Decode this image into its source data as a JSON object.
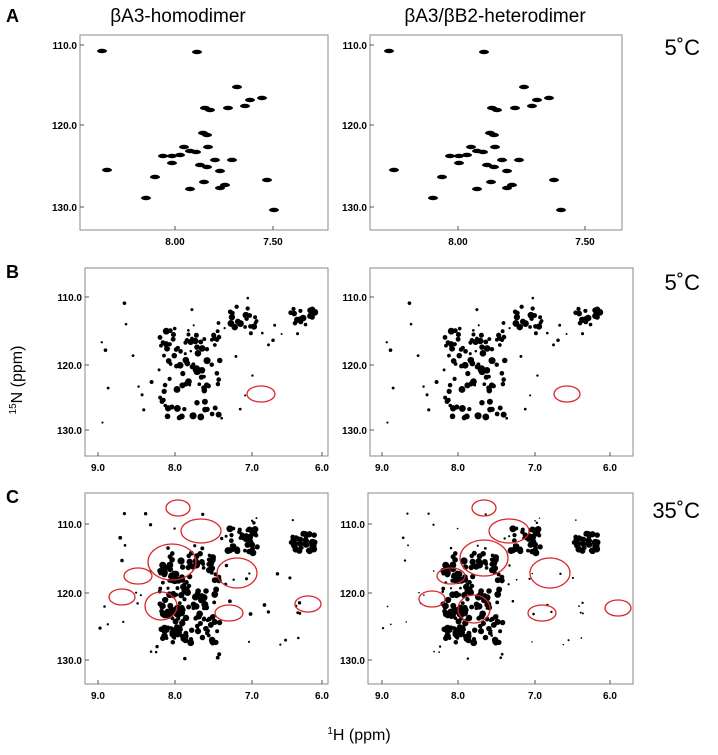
{
  "columns": [
    "βA3-homodimer",
    "βA3/βB2-heterodimer"
  ],
  "rows": [
    {
      "label": "A",
      "temperature": "5˚C",
      "xticks": [
        "8.00",
        "7.50"
      ],
      "yticks": [
        "110.0",
        "120.0",
        "130.0"
      ]
    },
    {
      "label": "B",
      "temperature": "5˚C",
      "xticks": [
        "9.0",
        "8.0",
        "7.0",
        "6.0"
      ],
      "yticks": [
        "110.0",
        "120.0",
        "130.0"
      ]
    },
    {
      "label": "C",
      "temperature": "35˚C",
      "xticks": [
        "9.0",
        "8.0",
        "7.0",
        "6.0"
      ],
      "yticks": [
        "110.0",
        "120.0",
        "130.0"
      ]
    }
  ],
  "y_axis_label": {
    "sup": "15",
    "text": "N (ppm)"
  },
  "x_axis_label": {
    "sup": "1",
    "text": "H (ppm)"
  }
}
